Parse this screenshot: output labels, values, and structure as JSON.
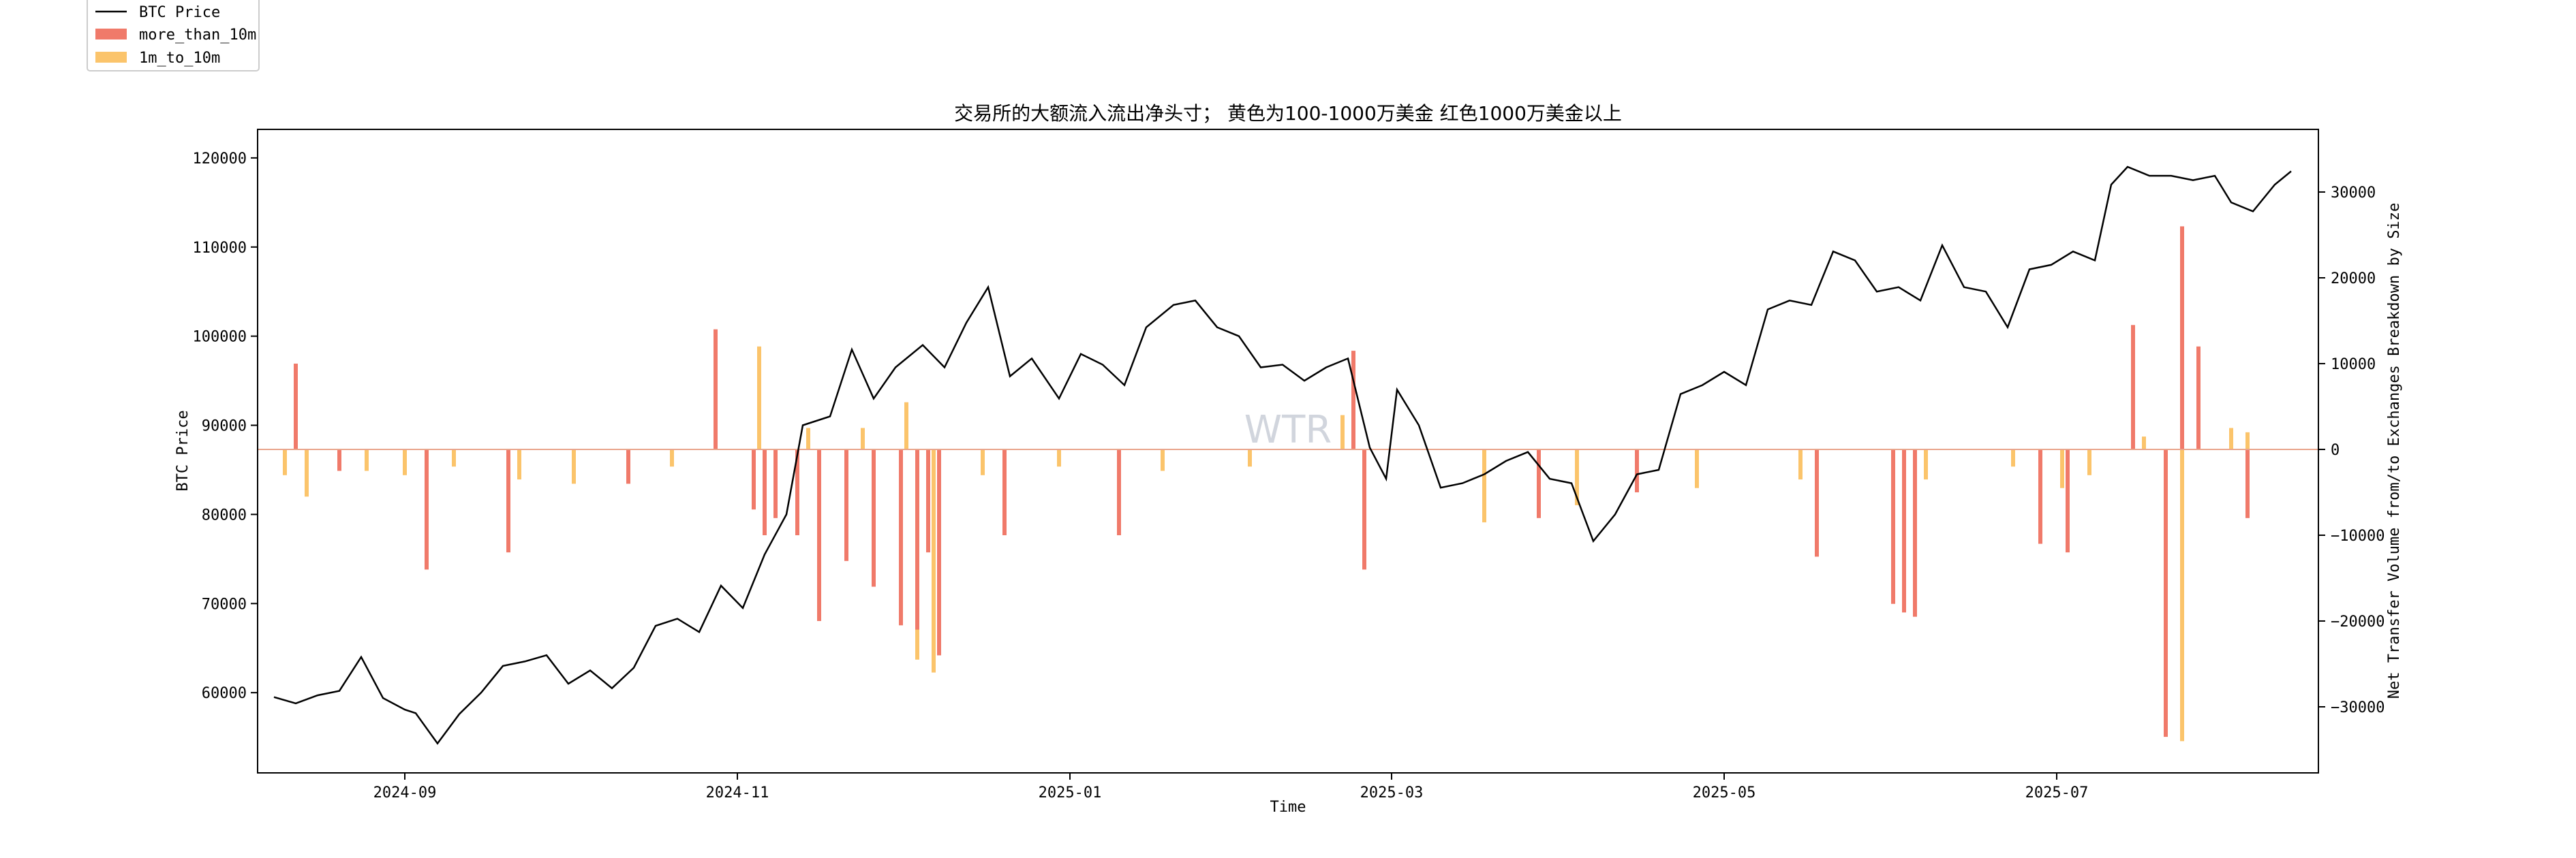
{
  "chart_data": {
    "type": "bar+line",
    "title": "交易所的大额流入流出净头寸； 黄色为100-1000万美金 红色1000万美金以上",
    "xlabel": "Time",
    "ylabel_left": "BTC Price",
    "ylabel_right": "Net Transfer Volume from/to Exchanges Breakdown by Size",
    "watermark": "WTR",
    "x_range": [
      "2024-08-05",
      "2025-08-18"
    ],
    "x_ticks": [
      "2024-09",
      "2024-11",
      "2025-01",
      "2025-03",
      "2025-05",
      "2025-07"
    ],
    "y_left_range": [
      51000,
      123200
    ],
    "y_left_ticks": [
      60000,
      70000,
      80000,
      90000,
      100000,
      110000,
      120000
    ],
    "y_right_range": [
      -37700,
      37300
    ],
    "y_right_ticks": [
      -30000,
      -20000,
      -10000,
      0,
      10000,
      20000,
      30000
    ],
    "legend_position": "top-left",
    "colors": {
      "price": "#000000",
      "more_than_10m": "#f07a6a",
      "1m_to_10m": "#fbc46b"
    },
    "series": [
      {
        "name": "BTC Price",
        "kind": "line",
        "x": [
          "2024-08-08",
          "2024-08-12",
          "2024-08-16",
          "2024-08-20",
          "2024-08-24",
          "2024-08-28",
          "2024-09-01",
          "2024-09-03",
          "2024-09-07",
          "2024-09-11",
          "2024-09-15",
          "2024-09-19",
          "2024-09-23",
          "2024-09-27",
          "2024-10-01",
          "2024-10-05",
          "2024-10-09",
          "2024-10-13",
          "2024-10-17",
          "2024-10-21",
          "2024-10-25",
          "2024-10-29",
          "2024-11-02",
          "2024-11-06",
          "2024-11-10",
          "2024-11-13",
          "2024-11-18",
          "2024-11-22",
          "2024-11-26",
          "2024-11-30",
          "2024-12-05",
          "2024-12-09",
          "2024-12-13",
          "2024-12-17",
          "2024-12-21",
          "2024-12-25",
          "2024-12-30",
          "2025-01-03",
          "2025-01-07",
          "2025-01-11",
          "2025-01-15",
          "2025-01-20",
          "2025-01-24",
          "2025-01-28",
          "2025-02-01",
          "2025-02-05",
          "2025-02-09",
          "2025-02-13",
          "2025-02-17",
          "2025-02-21",
          "2025-02-25",
          "2025-02-28",
          "2025-03-02",
          "2025-03-06",
          "2025-03-10",
          "2025-03-14",
          "2025-03-18",
          "2025-03-22",
          "2025-03-26",
          "2025-03-30",
          "2025-04-03",
          "2025-04-07",
          "2025-04-11",
          "2025-04-15",
          "2025-04-19",
          "2025-04-23",
          "2025-04-27",
          "2025-05-01",
          "2025-05-05",
          "2025-05-09",
          "2025-05-13",
          "2025-05-17",
          "2025-05-21",
          "2025-05-25",
          "2025-05-29",
          "2025-06-02",
          "2025-06-06",
          "2025-06-10",
          "2025-06-14",
          "2025-06-18",
          "2025-06-22",
          "2025-06-26",
          "2025-06-30",
          "2025-07-04",
          "2025-07-08",
          "2025-07-11",
          "2025-07-14",
          "2025-07-18",
          "2025-07-22",
          "2025-07-26",
          "2025-07-30",
          "2025-08-02",
          "2025-08-06",
          "2025-08-10",
          "2025-08-13"
        ],
        "y": [
          59500,
          58800,
          59700,
          60200,
          64000,
          59400,
          58100,
          57700,
          54300,
          57600,
          60000,
          63000,
          63500,
          64200,
          61000,
          62500,
          60500,
          62800,
          67500,
          68300,
          66800,
          72000,
          69500,
          75500,
          80000,
          90000,
          91000,
          98500,
          93000,
          96500,
          99000,
          96500,
          101500,
          105500,
          95500,
          97500,
          93000,
          98000,
          96800,
          94500,
          101000,
          103500,
          104000,
          101000,
          100000,
          96500,
          96800,
          95000,
          96500,
          97500,
          87500,
          84000,
          94000,
          90000,
          83000,
          83500,
          84500,
          86000,
          87000,
          84000,
          83500,
          77000,
          80000,
          84500,
          85000,
          93500,
          94500,
          96000,
          94500,
          103000,
          104000,
          103500,
          109500,
          108500,
          105000,
          105500,
          104000,
          110200,
          105500,
          105000,
          101000,
          107500,
          108000,
          109500,
          108500,
          117000,
          119000,
          118000,
          118000,
          117500,
          118000,
          115000,
          114000,
          117000,
          118500
        ]
      },
      {
        "name": "more_than_10m",
        "kind": "bar",
        "x": [
          "2024-08-12",
          "2024-08-20",
          "2024-09-05",
          "2024-09-20",
          "2024-10-12",
          "2024-10-28",
          "2024-11-04",
          "2024-11-06",
          "2024-11-08",
          "2024-11-12",
          "2024-11-16",
          "2024-11-21",
          "2024-11-26",
          "2024-12-01",
          "2024-12-04",
          "2024-12-06",
          "2024-12-08",
          "2024-12-20",
          "2025-01-10",
          "2025-02-22",
          "2025-02-24",
          "2025-03-28",
          "2025-04-15",
          "2025-05-18",
          "2025-06-01",
          "2025-06-03",
          "2025-06-05",
          "2025-06-28",
          "2025-07-03",
          "2025-07-15",
          "2025-07-21",
          "2025-07-24",
          "2025-07-27",
          "2025-08-05"
        ],
        "values": [
          10000,
          -2500,
          -14000,
          -12000,
          -4000,
          14000,
          -7000,
          -10000,
          -8000,
          -10000,
          -20000,
          -13000,
          -16000,
          -20500,
          -21000,
          -12000,
          -24000,
          -10000,
          -10000,
          11500,
          -14000,
          -8000,
          -5000,
          -12500,
          -18000,
          -19000,
          -19500,
          -11000,
          -12000,
          14500,
          -33500,
          26000,
          12000,
          -8000
        ]
      },
      {
        "name": "1m_to_10m",
        "kind": "bar",
        "x": [
          "2024-08-10",
          "2024-08-14",
          "2024-08-25",
          "2024-09-01",
          "2024-09-10",
          "2024-09-22",
          "2024-10-02",
          "2024-10-20",
          "2024-11-05",
          "2024-11-14",
          "2024-11-24",
          "2024-12-02",
          "2024-12-04",
          "2024-12-07",
          "2024-12-16",
          "2024-12-30",
          "2025-01-18",
          "2025-02-03",
          "2025-02-20",
          "2025-03-18",
          "2025-04-04",
          "2025-04-26",
          "2025-05-15",
          "2025-06-03",
          "2025-06-07",
          "2025-06-23",
          "2025-07-02",
          "2025-07-07",
          "2025-07-17",
          "2025-07-24",
          "2025-08-02",
          "2025-08-05"
        ],
        "values": [
          -3000,
          -5500,
          -2500,
          -3000,
          -2000,
          -3500,
          -4000,
          -2000,
          12000,
          2500,
          2500,
          5500,
          -24500,
          -26000,
          -3000,
          -2000,
          -2500,
          -2000,
          4000,
          -8500,
          -6500,
          -4500,
          -3500,
          -2500,
          -3500,
          -2000,
          -4500,
          -3000,
          1500,
          -34000,
          2500,
          2000
        ]
      }
    ]
  }
}
